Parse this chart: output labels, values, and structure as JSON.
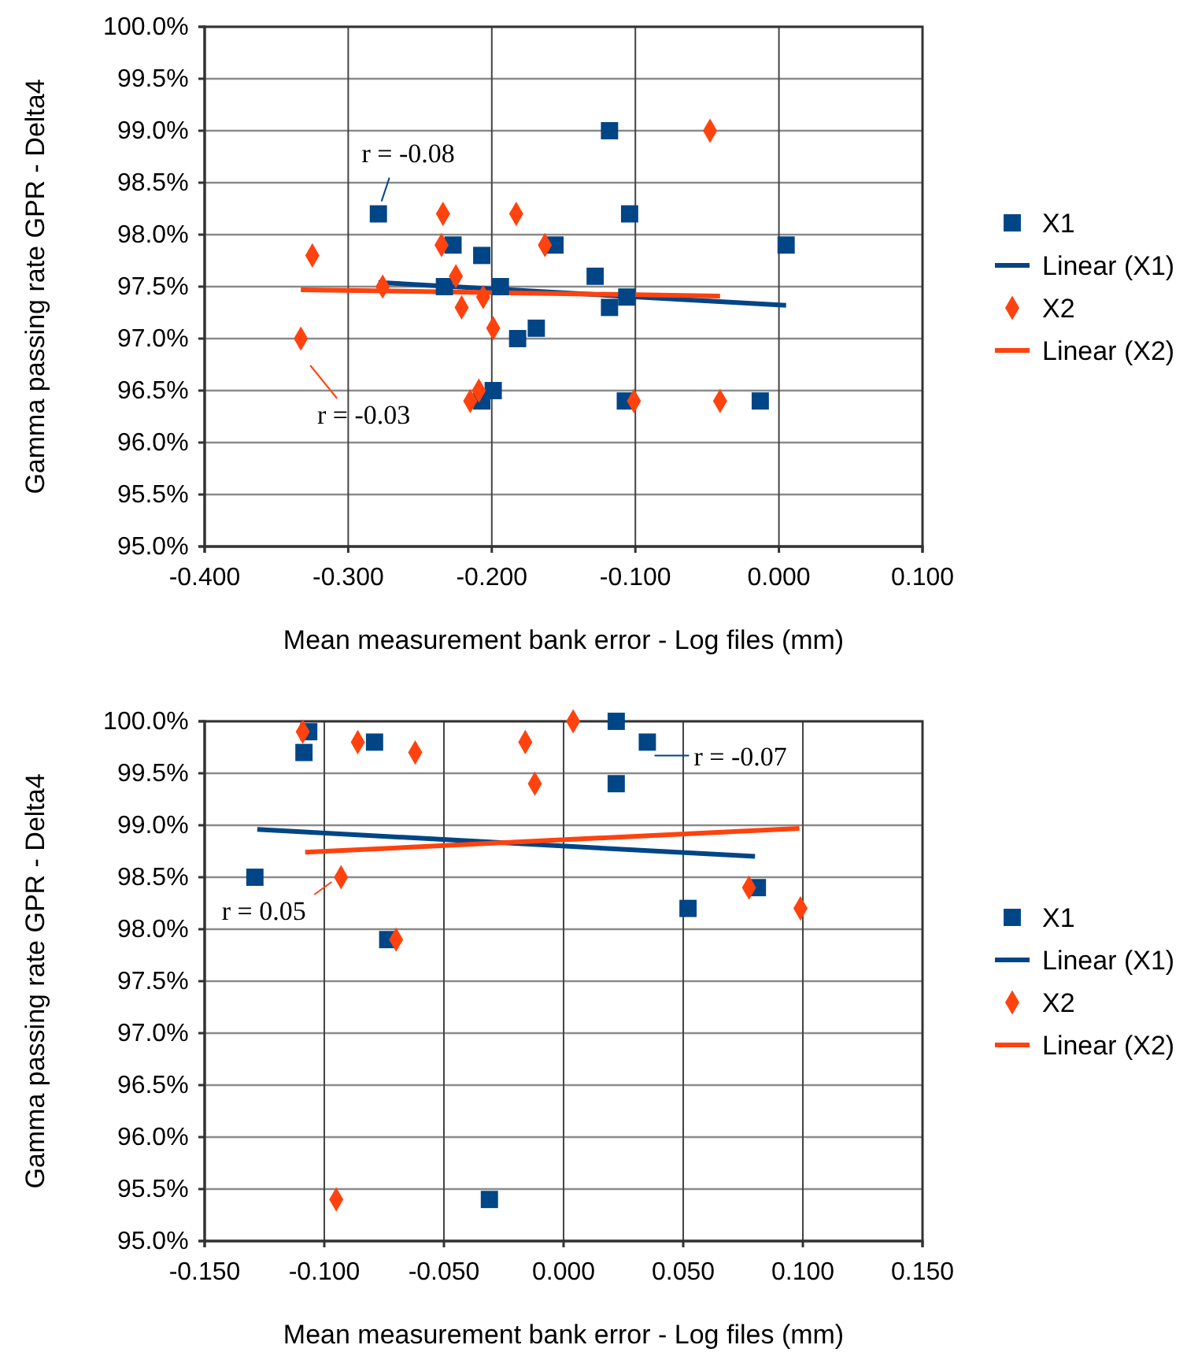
{
  "chart_data": [
    {
      "type": "scatter",
      "xlabel": "Mean measurement bank error - Log files (mm)",
      "ylabel": "Gamma passing rate GPR - Delta4",
      "grid": true,
      "legend": "right",
      "xlim": [
        -0.4,
        0.1
      ],
      "xticks": [
        {
          "value": -0.4,
          "label": "-0.400"
        },
        {
          "value": -0.3,
          "label": "-0.300"
        },
        {
          "value": -0.2,
          "label": "-0.200"
        },
        {
          "value": -0.1,
          "label": "-0.100"
        },
        {
          "value": 0,
          "label": "0.000"
        },
        {
          "value": 0.1,
          "label": "0.100"
        }
      ],
      "ylim": [
        95,
        100
      ],
      "yticks": [
        {
          "value": 95,
          "label": "95.0%"
        },
        {
          "value": 95.5,
          "label": "95.5%"
        },
        {
          "value": 96,
          "label": "96.0%"
        },
        {
          "value": 96.5,
          "label": "96.5%"
        },
        {
          "value": 97,
          "label": "97.0%"
        },
        {
          "value": 97.5,
          "label": "97.5%"
        },
        {
          "value": 98,
          "label": "98.0%"
        },
        {
          "value": 98.5,
          "label": "98.5%"
        },
        {
          "value": 99,
          "label": "99.0%"
        },
        {
          "value": 99.5,
          "label": "99.5%"
        },
        {
          "value": 100,
          "label": "100.0%"
        }
      ],
      "annotations": [
        {
          "text": "r = -0.08",
          "x": -0.279,
          "y": 98.2
        },
        {
          "text": "r = -0.03",
          "x": -0.333,
          "y": 97.0
        }
      ],
      "series": [
        {
          "name": "X1",
          "type": "scatter",
          "marker": "square",
          "color": "#004586",
          "x": [
            -0.279,
            -0.227,
            -0.207,
            -0.233,
            -0.194,
            -0.156,
            -0.182,
            -0.169,
            -0.199,
            -0.207,
            -0.118,
            -0.104,
            -0.128,
            -0.106,
            -0.118,
            -0.107,
            -0.013,
            0.005
          ],
          "values": [
            98.2,
            97.9,
            97.8,
            97.5,
            97.5,
            97.9,
            97.0,
            97.1,
            96.5,
            96.4,
            99.0,
            98.2,
            97.6,
            97.4,
            97.3,
            96.4,
            96.4,
            97.9
          ]
        },
        {
          "name": "Linear (X1)",
          "type": "line",
          "marker": "none",
          "color": "#004586",
          "x": [
            -0.279,
            0.005
          ],
          "values": [
            97.54,
            97.32
          ]
        },
        {
          "name": "X2",
          "type": "scatter",
          "marker": "diamond",
          "color": "#ff420e",
          "x": [
            -0.325,
            -0.333,
            -0.276,
            -0.234,
            -0.235,
            -0.225,
            -0.221,
            -0.206,
            -0.199,
            -0.183,
            -0.163,
            -0.209,
            -0.215,
            -0.048,
            -0.101,
            -0.041
          ],
          "values": [
            97.8,
            97.0,
            97.5,
            98.2,
            97.9,
            97.6,
            97.3,
            97.4,
            97.1,
            98.2,
            97.9,
            96.5,
            96.4,
            99.0,
            96.4,
            96.4
          ]
        },
        {
          "name": "Linear (X2)",
          "type": "line",
          "marker": "none",
          "color": "#ff420e",
          "x": [
            -0.333,
            -0.041
          ],
          "values": [
            97.47,
            97.41
          ]
        }
      ]
    },
    {
      "type": "scatter",
      "xlabel": "Mean measurement bank error - Log files (mm)",
      "ylabel": "Gamma passing rate GPR - Delta4",
      "grid": true,
      "legend": "right",
      "xlim": [
        -0.15,
        0.15
      ],
      "xticks": [
        {
          "value": -0.15,
          "label": "-0.150"
        },
        {
          "value": -0.1,
          "label": "-0.100"
        },
        {
          "value": -0.05,
          "label": "-0.050"
        },
        {
          "value": 0,
          "label": "0.000"
        },
        {
          "value": 0.05,
          "label": "0.050"
        },
        {
          "value": 0.1,
          "label": "0.100"
        },
        {
          "value": 0.15,
          "label": "0.150"
        }
      ],
      "ylim": [
        95,
        100
      ],
      "yticks": [
        {
          "value": 95,
          "label": "95.0%"
        },
        {
          "value": 95.5,
          "label": "95.5%"
        },
        {
          "value": 96,
          "label": "96.0%"
        },
        {
          "value": 96.5,
          "label": "96.5%"
        },
        {
          "value": 97,
          "label": "97.0%"
        },
        {
          "value": 97.5,
          "label": "97.5%"
        },
        {
          "value": 98,
          "label": "98.0%"
        },
        {
          "value": 98.5,
          "label": "98.5%"
        },
        {
          "value": 99,
          "label": "99.0%"
        },
        {
          "value": 99.5,
          "label": "99.5%"
        },
        {
          "value": 100,
          "label": "100.0%"
        }
      ],
      "annotations": [
        {
          "text": "r = 0.05",
          "x": -0.093,
          "y": 98.5
        },
        {
          "text": "r = -0.07",
          "x": 0.038,
          "y": 99.67
        }
      ],
      "series": [
        {
          "name": "X1",
          "type": "scatter",
          "marker": "square",
          "color": "#004586",
          "x": [
            -0.1065,
            -0.1085,
            -0.079,
            -0.129,
            -0.0735,
            -0.031,
            0.022,
            0.035,
            0.022,
            0.052,
            0.081
          ],
          "values": [
            99.9,
            99.7,
            99.8,
            98.5,
            97.9,
            95.4,
            100.0,
            99.8,
            99.4,
            98.2,
            98.4
          ]
        },
        {
          "name": "Linear (X1)",
          "type": "line",
          "marker": "none",
          "color": "#004586",
          "x": [
            -0.128,
            0.08
          ],
          "values": [
            98.96,
            98.7
          ]
        },
        {
          "name": "X2",
          "type": "scatter",
          "marker": "diamond",
          "color": "#ff420e",
          "x": [
            -0.109,
            -0.086,
            -0.062,
            -0.016,
            -0.012,
            -0.093,
            -0.07,
            -0.095,
            0.004,
            0.0775,
            0.099
          ],
          "values": [
            99.9,
            99.8,
            99.7,
            99.8,
            99.4,
            98.5,
            97.9,
            95.4,
            100.0,
            98.4,
            98.2
          ]
        },
        {
          "name": "Linear (X2)",
          "type": "line",
          "marker": "none",
          "color": "#ff420e",
          "x": [
            -0.108,
            0.0985
          ],
          "values": [
            98.74,
            98.97
          ]
        }
      ]
    }
  ]
}
